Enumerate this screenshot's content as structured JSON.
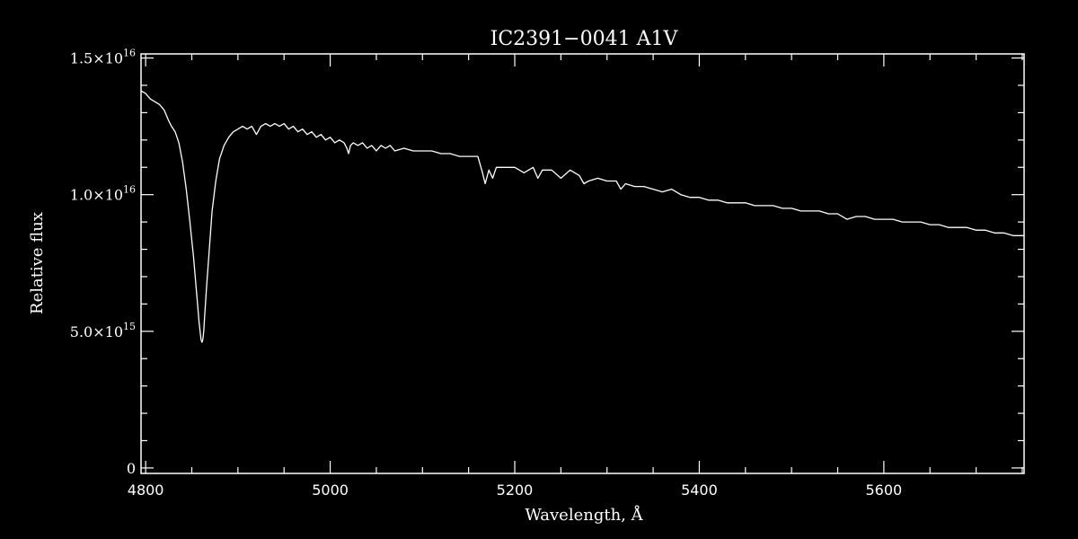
{
  "chart_data": {
    "type": "line",
    "title": "IC2391−0041   A1V",
    "xlabel": "Wavelength, Å",
    "ylabel": "Relative flux",
    "xlim": [
      4795,
      5752
    ],
    "ylim": [
      -200000000000000.0,
      1.515e+16
    ],
    "x_ticks": [
      {
        "value": 4800,
        "label": "4800"
      },
      {
        "value": 5000,
        "label": "5000"
      },
      {
        "value": 5200,
        "label": "5200"
      },
      {
        "value": 5400,
        "label": "5400"
      },
      {
        "value": 5600,
        "label": "5600"
      }
    ],
    "y_ticks": [
      {
        "value": 0,
        "mantissa": "0",
        "exponent": ""
      },
      {
        "value": 5000000000000000.0,
        "mantissa": "5.0×10",
        "exponent": "15"
      },
      {
        "value": 1e+16,
        "mantissa": "1.0×10",
        "exponent": "16"
      },
      {
        "value": 1.5e+16,
        "mantissa": "1.5×10",
        "exponent": "16"
      }
    ],
    "grid": false,
    "colors": {
      "background": "#000000",
      "line": "#ffffff",
      "axes": "#ffffff"
    },
    "series": [
      {
        "x": [
          4795,
          4800,
          4805,
          4810,
          4815,
          4820,
          4825,
          4828,
          4832,
          4836,
          4840,
          4844,
          4848,
          4852,
          4855,
          4858,
          4860,
          4861,
          4862,
          4863,
          4864,
          4866,
          4869,
          4872,
          4876,
          4880,
          4885,
          4890,
          4895,
          4900,
          4905,
          4910,
          4915,
          4920,
          4925,
          4930,
          4935,
          4940,
          4945,
          4950,
          4955,
          4960,
          4965,
          4970,
          4975,
          4980,
          4985,
          4990,
          4995,
          5000,
          5005,
          5010,
          5015,
          5018,
          5020,
          5022,
          5025,
          5030,
          5035,
          5040,
          5045,
          5050,
          5055,
          5060,
          5065,
          5070,
          5080,
          5090,
          5100,
          5110,
          5120,
          5130,
          5140,
          5150,
          5160,
          5165,
          5168,
          5172,
          5176,
          5180,
          5190,
          5200,
          5210,
          5220,
          5225,
          5230,
          5240,
          5250,
          5260,
          5270,
          5275,
          5280,
          5290,
          5300,
          5310,
          5315,
          5320,
          5330,
          5340,
          5350,
          5360,
          5370,
          5380,
          5390,
          5400,
          5410,
          5420,
          5430,
          5440,
          5450,
          5460,
          5470,
          5480,
          5490,
          5500,
          5510,
          5520,
          5530,
          5540,
          5550,
          5560,
          5570,
          5580,
          5590,
          5600,
          5610,
          5620,
          5630,
          5640,
          5650,
          5660,
          5670,
          5680,
          5690,
          5700,
          5710,
          5720,
          5730,
          5740,
          5752
        ],
        "y": [
          1.38e+16,
          1.37e+16,
          1.35e+16,
          1.34e+16,
          1.33e+16,
          1.31e+16,
          1.27e+16,
          1.25e+16,
          1.23e+16,
          1.19e+16,
          1.12e+16,
          1.02e+16,
          9000000000000000.0,
          7700000000000000.0,
          6500000000000000.0,
          5300000000000000.0,
          4700000000000000.0,
          4600000000000000.0,
          4700000000000000.0,
          5000000000000000.0,
          5600000000000000.0,
          6600000000000000.0,
          8000000000000000.0,
          9400000000000000.0,
          1.05e+16,
          1.13e+16,
          1.18e+16,
          1.21e+16,
          1.23e+16,
          1.24e+16,
          1.25e+16,
          1.24e+16,
          1.25e+16,
          1.22e+16,
          1.25e+16,
          1.26e+16,
          1.25e+16,
          1.26e+16,
          1.25e+16,
          1.26e+16,
          1.24e+16,
          1.25e+16,
          1.23e+16,
          1.24e+16,
          1.22e+16,
          1.23e+16,
          1.21e+16,
          1.22e+16,
          1.2e+16,
          1.21e+16,
          1.19e+16,
          1.2e+16,
          1.19e+16,
          1.17e+16,
          1.15e+16,
          1.18e+16,
          1.19e+16,
          1.18e+16,
          1.19e+16,
          1.17e+16,
          1.18e+16,
          1.16e+16,
          1.18e+16,
          1.17e+16,
          1.18e+16,
          1.16e+16,
          1.17e+16,
          1.16e+16,
          1.16e+16,
          1.16e+16,
          1.15e+16,
          1.15e+16,
          1.14e+16,
          1.14e+16,
          1.14e+16,
          1.08e+16,
          1.04e+16,
          1.09e+16,
          1.06e+16,
          1.1e+16,
          1.1e+16,
          1.1e+16,
          1.08e+16,
          1.1e+16,
          1.06e+16,
          1.09e+16,
          1.09e+16,
          1.06e+16,
          1.09e+16,
          1.07e+16,
          1.04e+16,
          1.05e+16,
          1.06e+16,
          1.05e+16,
          1.05e+16,
          1.02e+16,
          1.04e+16,
          1.03e+16,
          1.03e+16,
          1.02e+16,
          1.01e+16,
          1.02e+16,
          1e+16,
          9900000000000000.0,
          9900000000000000.0,
          9800000000000000.0,
          9800000000000000.0,
          9700000000000000.0,
          9700000000000000.0,
          9700000000000000.0,
          9600000000000000.0,
          9600000000000000.0,
          9600000000000000.0,
          9500000000000000.0,
          9500000000000000.0,
          9400000000000000.0,
          9400000000000000.0,
          9400000000000000.0,
          9300000000000000.0,
          9300000000000000.0,
          9100000000000000.0,
          9200000000000000.0,
          9200000000000000.0,
          9100000000000000.0,
          9100000000000000.0,
          9100000000000000.0,
          9000000000000000.0,
          9000000000000000.0,
          9000000000000000.0,
          8900000000000000.0,
          8900000000000000.0,
          8800000000000000.0,
          8800000000000000.0,
          8800000000000000.0,
          8700000000000000.0,
          8700000000000000.0,
          8600000000000000.0,
          8600000000000000.0,
          8500000000000000.0,
          8500000000000000.0
        ]
      }
    ]
  }
}
